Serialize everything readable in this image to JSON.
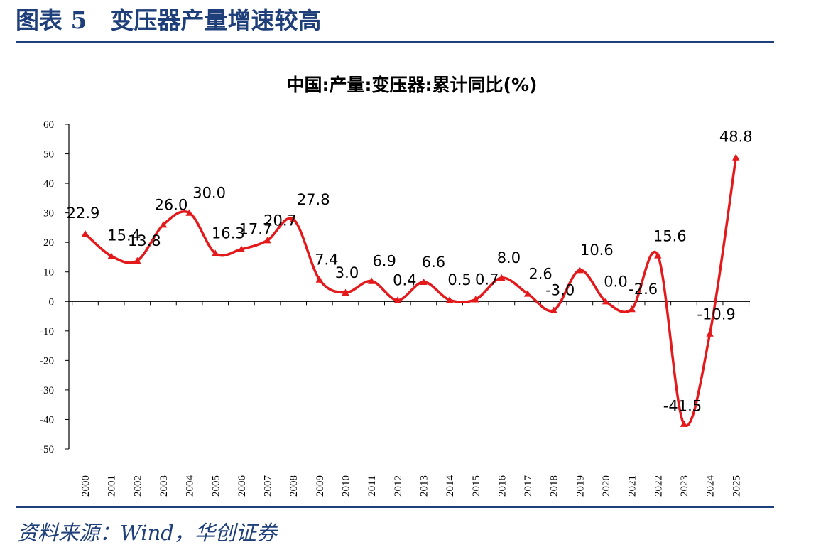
{
  "figure": {
    "title": "图表 5　变压器产量增速较高",
    "source": "资料来源：Wind，华创证券"
  },
  "colors": {
    "accent": "#1f3f7a",
    "series": "#e3191c"
  },
  "chart_data": {
    "type": "line",
    "title": "中国:产量:变压器:累计同比(%)",
    "xlabel": "",
    "ylabel": "",
    "ylim": [
      -50,
      60
    ],
    "yticks": [
      60,
      50,
      40,
      30,
      20,
      10,
      0,
      -10,
      -20,
      -30,
      -40,
      -50
    ],
    "grid": false,
    "legend": "none",
    "marker": "triangle",
    "smooth": true,
    "categories": [
      "2000",
      "2001",
      "2002",
      "2003",
      "2004",
      "2005",
      "2006",
      "2007",
      "2008",
      "2009",
      "2010",
      "2011",
      "2012",
      "2013",
      "2014",
      "2015",
      "2016",
      "2017",
      "2018",
      "2019",
      "2020",
      "2021",
      "2022",
      "2023",
      "2024",
      "2025"
    ],
    "values": [
      22.9,
      15.4,
      13.8,
      26.0,
      30.0,
      16.3,
      17.7,
      20.7,
      27.8,
      7.4,
      3.0,
      6.9,
      0.4,
      6.6,
      0.5,
      0.7,
      8.0,
      2.6,
      -3.0,
      10.6,
      0.0,
      -2.6,
      15.6,
      -41.5,
      -10.9,
      48.8
    ],
    "data_labels": [
      "22.9",
      "15.4",
      "13.8",
      "26.0",
      "30.0",
      "16.3",
      "17.7",
      "20.7",
      "27.8",
      "7.4",
      "3.0",
      "6.9",
      "0.4",
      "6.6",
      "0.5",
      "0.7",
      "8.0",
      "2.6",
      "-3.0",
      "10.6",
      "0.0",
      "-2.6",
      "15.6",
      "-41.5",
      "-10.9",
      "48.8"
    ]
  }
}
